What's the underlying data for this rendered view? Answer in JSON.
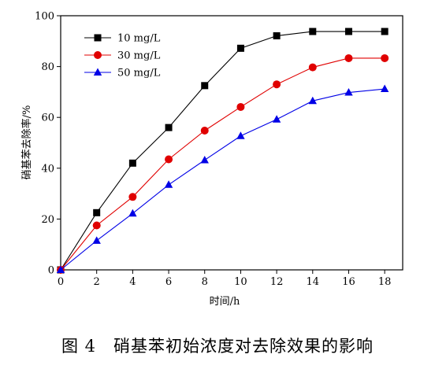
{
  "chart_data": {
    "type": "line",
    "xlabel": "时间/h",
    "ylabel": "硝基苯去除率/%",
    "xlim": [
      0,
      19
    ],
    "ylim": [
      0,
      100
    ],
    "xticks": [
      0,
      2,
      4,
      6,
      8,
      10,
      12,
      14,
      16,
      18
    ],
    "yticks": [
      0,
      20,
      40,
      60,
      80,
      100
    ],
    "x": [
      0,
      2,
      4,
      6,
      8,
      10,
      12,
      14,
      16,
      18
    ],
    "legend_position": "top-left",
    "series": [
      {
        "name": "10 mg/L",
        "marker": "square",
        "color": "#000000",
        "values": [
          0,
          22.5,
          42,
          56,
          72.5,
          87.2,
          92.1,
          93.8,
          93.8,
          93.8
        ]
      },
      {
        "name": "30 mg/L",
        "marker": "circle",
        "color": "#e00000",
        "values": [
          0,
          17.5,
          28.7,
          43.5,
          54.8,
          64.1,
          73,
          79.7,
          83.3,
          83.3
        ]
      },
      {
        "name": "50 mg/L",
        "marker": "triangle",
        "color": "#0000e6",
        "values": [
          0,
          11.5,
          22.2,
          33.5,
          43.2,
          52.7,
          59.2,
          66.5,
          69.8,
          71.2
        ]
      }
    ]
  },
  "caption": "图 4　硝基苯初始浓度对去除效果的影响"
}
